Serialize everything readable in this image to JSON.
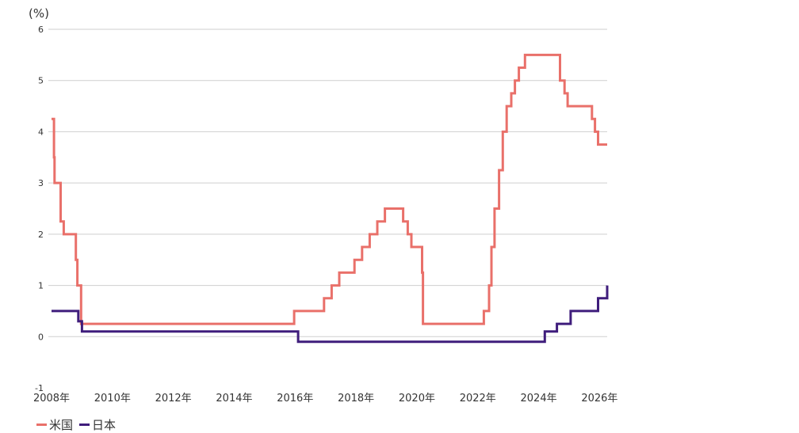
{
  "chart_data": {
    "type": "line",
    "step": true,
    "title": "",
    "ylabel": "(%)",
    "xlabel": "",
    "xlim": [
      2008.0,
      2026.25
    ],
    "ylim": [
      -1,
      6
    ],
    "y_ticks": [
      "-1",
      "0",
      "1",
      "2",
      "3",
      "4",
      "5",
      "6"
    ],
    "x_ticks": [
      {
        "value": 2008,
        "label": "2008年"
      },
      {
        "value": 2010,
        "label": "2010年"
      },
      {
        "value": 2012,
        "label": "2012年"
      },
      {
        "value": 2014,
        "label": "2014年"
      },
      {
        "value": 2016,
        "label": "2016年"
      },
      {
        "value": 2018,
        "label": "2018年"
      },
      {
        "value": 2020,
        "label": "2020年"
      },
      {
        "value": 2022,
        "label": "2022年"
      },
      {
        "value": 2024,
        "label": "2024年"
      },
      {
        "value": 2026,
        "label": "2026年"
      }
    ],
    "grid": "horizontal",
    "legend_position": "bottom-left",
    "series": [
      {
        "name": "米国",
        "color": "#e9706a",
        "points": [
          [
            2008.0,
            4.25
          ],
          [
            2008.08,
            3.5
          ],
          [
            2008.1,
            3.0
          ],
          [
            2008.3,
            2.25
          ],
          [
            2008.4,
            2.0
          ],
          [
            2008.8,
            1.5
          ],
          [
            2008.85,
            1.0
          ],
          [
            2008.97,
            0.25
          ],
          [
            2015.95,
            0.25
          ],
          [
            2015.97,
            0.5
          ],
          [
            2016.95,
            0.75
          ],
          [
            2017.2,
            1.0
          ],
          [
            2017.45,
            1.25
          ],
          [
            2017.95,
            1.5
          ],
          [
            2018.2,
            1.75
          ],
          [
            2018.45,
            2.0
          ],
          [
            2018.7,
            2.25
          ],
          [
            2018.95,
            2.5
          ],
          [
            2019.55,
            2.25
          ],
          [
            2019.7,
            2.0
          ],
          [
            2019.82,
            1.75
          ],
          [
            2020.17,
            1.25
          ],
          [
            2020.2,
            0.25
          ],
          [
            2022.2,
            0.5
          ],
          [
            2022.37,
            1.0
          ],
          [
            2022.45,
            1.75
          ],
          [
            2022.55,
            2.5
          ],
          [
            2022.7,
            3.25
          ],
          [
            2022.82,
            4.0
          ],
          [
            2022.95,
            4.5
          ],
          [
            2023.1,
            4.75
          ],
          [
            2023.22,
            5.0
          ],
          [
            2023.35,
            5.25
          ],
          [
            2023.55,
            5.5
          ],
          [
            2024.7,
            5.0
          ],
          [
            2024.85,
            4.75
          ],
          [
            2024.95,
            4.5
          ],
          [
            2025.75,
            4.25
          ],
          [
            2025.85,
            4.0
          ],
          [
            2025.95,
            3.75
          ],
          [
            2026.25,
            3.75
          ]
        ]
      },
      {
        "name": "日本",
        "color": "#3f1d7c",
        "points": [
          [
            2008.0,
            0.5
          ],
          [
            2008.88,
            0.3
          ],
          [
            2009.0,
            0.1
          ],
          [
            2016.1,
            -0.1
          ],
          [
            2024.2,
            0.1
          ],
          [
            2024.6,
            0.25
          ],
          [
            2025.05,
            0.5
          ],
          [
            2025.95,
            0.75
          ],
          [
            2026.25,
            1.0
          ]
        ]
      }
    ]
  }
}
